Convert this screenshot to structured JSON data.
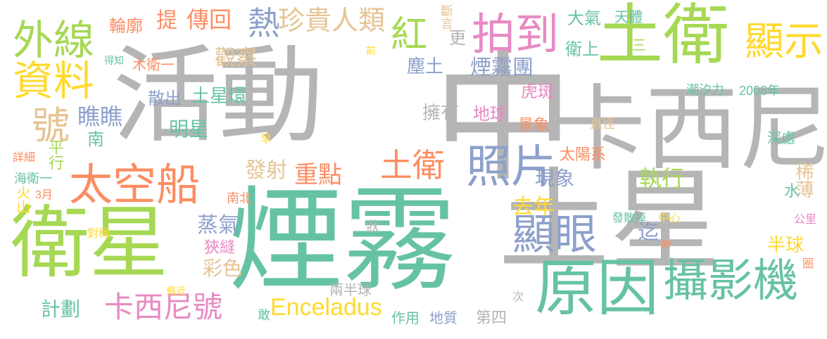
{
  "palette": {
    "gray": "#b5b5b5",
    "teal": "#66c2a5",
    "orange": "#fc8d62",
    "blue": "#8da0cb",
    "pink": "#e78ac3",
    "green": "#a6d854",
    "yellow": "#ffd92f",
    "tan": "#e5c494"
  },
  "words": [
    {
      "text": "煙霧",
      "color": "#66c2a5"
    },
    {
      "text": "土星",
      "color": "#b5b5b5"
    },
    {
      "text": "活動",
      "color": "#b5b5b5"
    },
    {
      "text": "中",
      "color": "#b5b5b5"
    },
    {
      "text": "卡西尼",
      "color": "#b5b5b5"
    },
    {
      "text": "衛星",
      "color": "#a6d854"
    },
    {
      "text": "土衛",
      "color": "#a6d854"
    },
    {
      "text": "原因",
      "color": "#66c2a5"
    },
    {
      "text": "太空船",
      "color": "#fc8d62"
    },
    {
      "text": "攝影機",
      "color": "#66c2a5"
    },
    {
      "text": "照片",
      "color": "#8da0cb"
    },
    {
      "text": "拍到",
      "color": "#e78ac3"
    },
    {
      "text": "顯示",
      "color": "#ffd92f"
    },
    {
      "text": "外線",
      "color": "#a6d854"
    },
    {
      "text": "資料",
      "color": "#ffd92f"
    },
    {
      "text": "紅",
      "color": "#a6d854"
    },
    {
      "text": "號",
      "color": "#e5c494"
    },
    {
      "text": "熱",
      "color": "#8da0cb"
    },
    {
      "text": "顯眼",
      "color": "#8da0cb"
    },
    {
      "text": "土衛",
      "color": "#fc8d62"
    },
    {
      "text": "卡西尼號",
      "color": "#e78ac3"
    },
    {
      "text": "Enceladus",
      "color": "#ffd92f"
    },
    {
      "text": "珍貴人類",
      "color": "#e5c494"
    },
    {
      "text": "傳回",
      "color": "#fc8d62"
    },
    {
      "text": "提",
      "color": "#fc8d62"
    },
    {
      "text": "輪廓",
      "color": "#fc8d62"
    },
    {
      "text": "更",
      "color": "#b5b5b5"
    },
    {
      "text": "斷言",
      "color": "#e5c494"
    },
    {
      "text": "大氣",
      "color": "#66c2a5"
    },
    {
      "text": "天體",
      "color": "#66c2a5"
    },
    {
      "text": "衛上",
      "color": "#66c2a5"
    },
    {
      "text": "三",
      "color": "#a6d854"
    },
    {
      "text": "觀察",
      "color": "#e5c494"
    },
    {
      "text": "塵土",
      "color": "#8da0cb"
    },
    {
      "text": "煙霧團",
      "color": "#8da0cb"
    },
    {
      "text": "得知",
      "color": "#66c2a5"
    },
    {
      "text": "木衛一",
      "color": "#fc8d62"
    },
    {
      "text": "前",
      "color": "#ffd92f"
    },
    {
      "text": "散出",
      "color": "#8da0cb"
    },
    {
      "text": "土星環",
      "color": "#66c2a5"
    },
    {
      "text": "虎斑",
      "color": "#e78ac3"
    },
    {
      "text": "潮汐力",
      "color": "#66c2a5"
    },
    {
      "text": "2008年",
      "color": "#66c2a5"
    },
    {
      "text": "瞧瞧",
      "color": "#8da0cb"
    },
    {
      "text": "明星",
      "color": "#66c2a5"
    },
    {
      "text": "擁有",
      "color": "#b5b5b5"
    },
    {
      "text": "地球",
      "color": "#e78ac3"
    },
    {
      "text": "南",
      "color": "#66c2a5"
    },
    {
      "text": "景象",
      "color": "#fc8d62"
    },
    {
      "text": "直徑",
      "color": "#e5c494"
    },
    {
      "text": "早",
      "color": "#ffd92f"
    },
    {
      "text": "深處",
      "color": "#66c2a5"
    },
    {
      "text": "詳細",
      "color": "#fc8d62"
    },
    {
      "text": "平行",
      "color": "#a6d854"
    },
    {
      "text": "發射",
      "color": "#e5c494"
    },
    {
      "text": "重點",
      "color": "#fc8d62"
    },
    {
      "text": "太陽系",
      "color": "#fc8d62"
    },
    {
      "text": "現象",
      "color": "#8da0cb"
    },
    {
      "text": "海衛一",
      "color": "#66c2a5"
    },
    {
      "text": "火山",
      "color": "#ffd92f"
    },
    {
      "text": "3月",
      "color": "#fc8d62"
    },
    {
      "text": "南北",
      "color": "#fc8d62"
    },
    {
      "text": "執行",
      "color": "#a6d854"
    },
    {
      "text": "稀薄",
      "color": "#e5c494"
    },
    {
      "text": "水",
      "color": "#66c2a5"
    },
    {
      "text": "去年",
      "color": "#ffd92f"
    },
    {
      "text": "發散掉",
      "color": "#66c2a5"
    },
    {
      "text": "中心",
      "color": "#ffd92f"
    },
    {
      "text": "公里",
      "color": "#e78ac3"
    },
    {
      "text": "對稱",
      "color": "#ffd92f"
    },
    {
      "text": "蒸氣",
      "color": "#8da0cb"
    },
    {
      "text": "狀",
      "color": "#b5b5b5"
    },
    {
      "text": "迄",
      "color": "#8da0cb"
    },
    {
      "text": "時",
      "color": "#fc8d62"
    },
    {
      "text": "半球",
      "color": "#ffd92f"
    },
    {
      "text": "狹縫",
      "color": "#e78ac3"
    },
    {
      "text": "圈",
      "color": "#fc8d62"
    },
    {
      "text": "彩色",
      "color": "#e5c494"
    },
    {
      "text": "飛近",
      "color": "#ffd92f"
    },
    {
      "text": "兩半球",
      "color": "#b5b5b5"
    },
    {
      "text": "計劃",
      "color": "#66c2a5"
    },
    {
      "text": "敢",
      "color": "#66c2a5"
    },
    {
      "text": "作用",
      "color": "#66c2a5"
    },
    {
      "text": "地質",
      "color": "#8da0cb"
    },
    {
      "text": "第四",
      "color": "#b5b5b5"
    },
    {
      "text": "次",
      "color": "#b5b5b5"
    }
  ]
}
